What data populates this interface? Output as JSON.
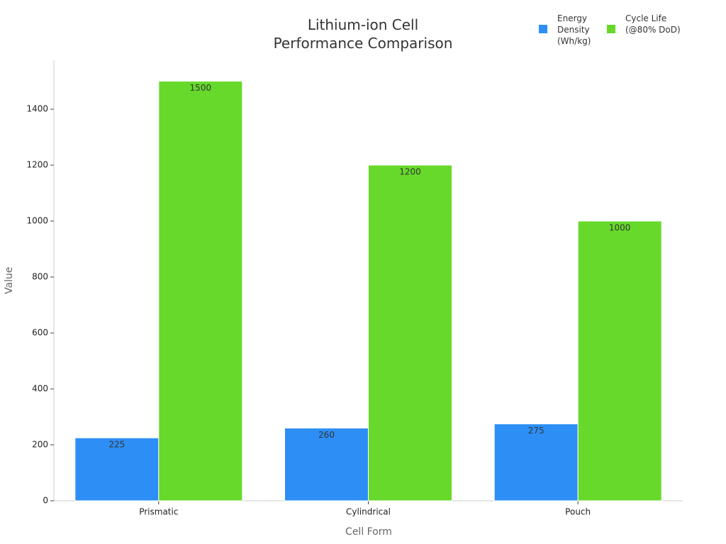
{
  "chart_data": {
    "type": "bar",
    "title": "Lithium-ion Cell Performance Comparison",
    "x_label": "Cell Form",
    "y_label": "Value",
    "categories": [
      "Prismatic",
      "Cylindrical",
      "Pouch"
    ],
    "series": [
      {
        "name": "Energy Density (Wh/kg)",
        "color": "#2d8ff5",
        "values": [
          225,
          260,
          275
        ]
      },
      {
        "name": "Cycle Life (@80% DoD)",
        "color": "#66d92a",
        "values": [
          1500,
          1200,
          1000
        ]
      }
    ],
    "ylim": [
      0,
      1575
    ],
    "yticks": [
      0,
      200,
      400,
      600,
      800,
      1000,
      1200,
      1400
    ],
    "grid": false,
    "legend": "upper right"
  }
}
